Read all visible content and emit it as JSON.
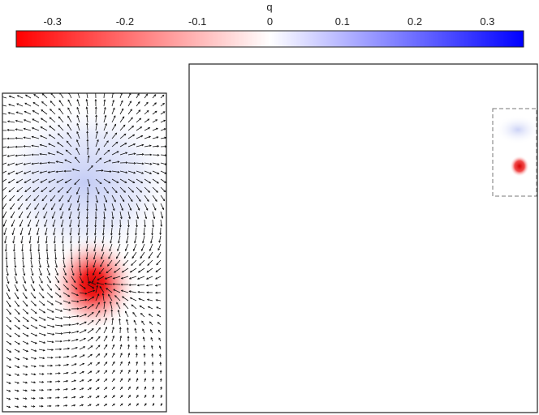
{
  "colorbar": {
    "label": "q",
    "min": -0.35,
    "max": 0.35,
    "ticks": [
      {
        "value": -0.3,
        "label": "-0.3"
      },
      {
        "value": -0.2,
        "label": "-0.2"
      },
      {
        "value": -0.1,
        "label": "-0.1"
      },
      {
        "value": 0,
        "label": "0"
      },
      {
        "value": 0.1,
        "label": "0.1"
      },
      {
        "value": 0.2,
        "label": "0.2"
      },
      {
        "value": 0.3,
        "label": "0.3"
      }
    ],
    "colors": {
      "negative": "#ff0000",
      "zero": "#ffffff",
      "positive": "#0000ff"
    }
  },
  "overview_panel": {
    "positive_blob": {
      "q": 0.06
    },
    "negative_blob": {
      "q": -0.35
    },
    "zoom_box_style": "dashed"
  },
  "zoom_panel": {
    "positive_lobe": {
      "q": 0.07
    },
    "negative_core": {
      "q": -0.35
    },
    "field": "vector arrows (black)"
  }
}
